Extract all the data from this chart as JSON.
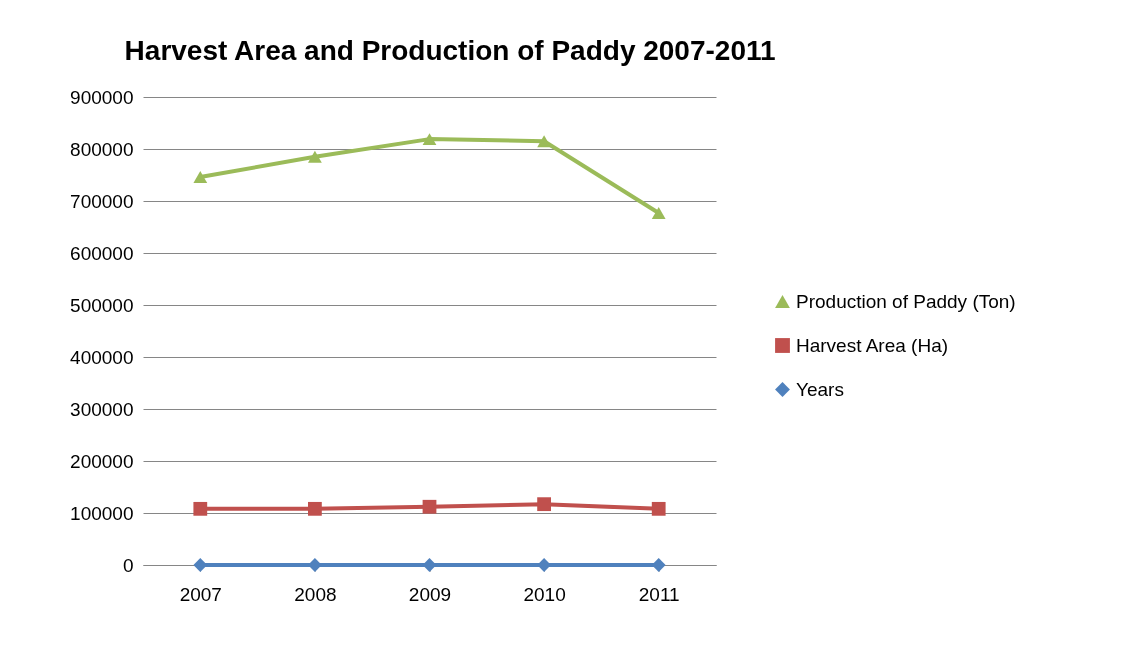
{
  "chart_data": {
    "type": "line",
    "title": "Harvest Area and Production of Paddy 2007-2011",
    "categories": [
      "2007",
      "2008",
      "2009",
      "2010",
      "2011"
    ],
    "series": [
      {
        "name": "Production of Paddy (Ton)",
        "color": "#9bbb59",
        "marker": "triangle",
        "values": [
          746000,
          785000,
          819000,
          815000,
          677000
        ]
      },
      {
        "name": "Harvest Area (Ha)",
        "color": "#c0504d",
        "marker": "square",
        "values": [
          108000,
          108000,
          112000,
          117000,
          108000
        ]
      },
      {
        "name": "Years",
        "color": "#4f81bd",
        "marker": "diamond",
        "values": [
          0,
          0,
          0,
          0,
          0
        ]
      }
    ],
    "ylim": [
      0,
      900000
    ],
    "yticks": [
      0,
      100000,
      200000,
      300000,
      400000,
      500000,
      600000,
      700000,
      800000,
      900000
    ],
    "grid": "y",
    "legend": "right",
    "line_style": "solid"
  }
}
